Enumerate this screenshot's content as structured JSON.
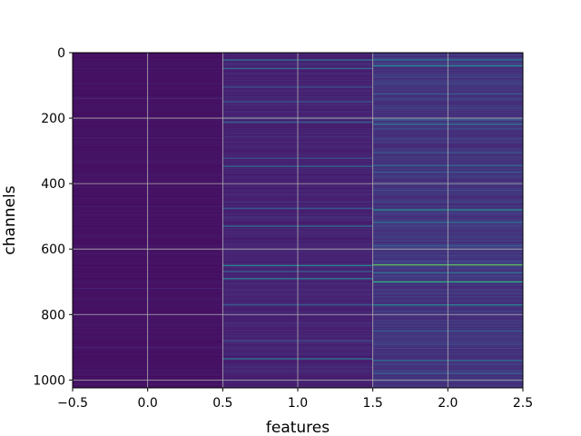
{
  "chart_data": {
    "type": "heatmap",
    "title": "",
    "xlabel": "features",
    "ylabel": "channels",
    "xlim": [
      -0.5,
      2.5
    ],
    "ylim": [
      1024,
      0
    ],
    "x_ticks": [
      "−0.5",
      "0.0",
      "0.5",
      "1.0",
      "1.5",
      "2.0",
      "2.5"
    ],
    "y_ticks": [
      "0",
      "200",
      "400",
      "600",
      "800",
      "1000"
    ],
    "grid": true,
    "colormap": "viridis",
    "n_rows": 1024,
    "n_columns": 3,
    "columns": [
      {
        "feature": 0,
        "base_value": 0.06,
        "bands": [
          {
            "channel": 140,
            "value": 0.12
          },
          {
            "channel": 260,
            "value": 0.1
          },
          {
            "channel": 470,
            "value": 0.1
          },
          {
            "channel": 720,
            "value": 0.12
          },
          {
            "channel": 900,
            "value": 0.11
          }
        ]
      },
      {
        "feature": 1,
        "base_value": 0.12,
        "bands": [
          {
            "channel": 22,
            "value": 0.45
          },
          {
            "channel": 48,
            "value": 0.4
          },
          {
            "channel": 105,
            "value": 0.3
          },
          {
            "channel": 150,
            "value": 0.32
          },
          {
            "channel": 212,
            "value": 0.38
          },
          {
            "channel": 322,
            "value": 0.3
          },
          {
            "channel": 347,
            "value": 0.42
          },
          {
            "channel": 475,
            "value": 0.35
          },
          {
            "channel": 530,
            "value": 0.42
          },
          {
            "channel": 650,
            "value": 0.55
          },
          {
            "channel": 668,
            "value": 0.35
          },
          {
            "channel": 690,
            "value": 0.48
          },
          {
            "channel": 770,
            "value": 0.35
          },
          {
            "channel": 880,
            "value": 0.3
          },
          {
            "channel": 935,
            "value": 0.45
          }
        ]
      },
      {
        "feature": 2,
        "base_value": 0.18,
        "bands": [
          {
            "channel": 22,
            "value": 0.48
          },
          {
            "channel": 40,
            "value": 0.55
          },
          {
            "channel": 125,
            "value": 0.35
          },
          {
            "channel": 205,
            "value": 0.38
          },
          {
            "channel": 218,
            "value": 0.45
          },
          {
            "channel": 305,
            "value": 0.32
          },
          {
            "channel": 345,
            "value": 0.4
          },
          {
            "channel": 365,
            "value": 0.35
          },
          {
            "channel": 420,
            "value": 0.3
          },
          {
            "channel": 480,
            "value": 0.6
          },
          {
            "channel": 518,
            "value": 0.45
          },
          {
            "channel": 590,
            "value": 0.35
          },
          {
            "channel": 648,
            "value": 0.8
          },
          {
            "channel": 672,
            "value": 0.45
          },
          {
            "channel": 700,
            "value": 0.7
          },
          {
            "channel": 770,
            "value": 0.55
          },
          {
            "channel": 850,
            "value": 0.35
          },
          {
            "channel": 940,
            "value": 0.45
          },
          {
            "channel": 980,
            "value": 0.35
          }
        ]
      }
    ]
  }
}
